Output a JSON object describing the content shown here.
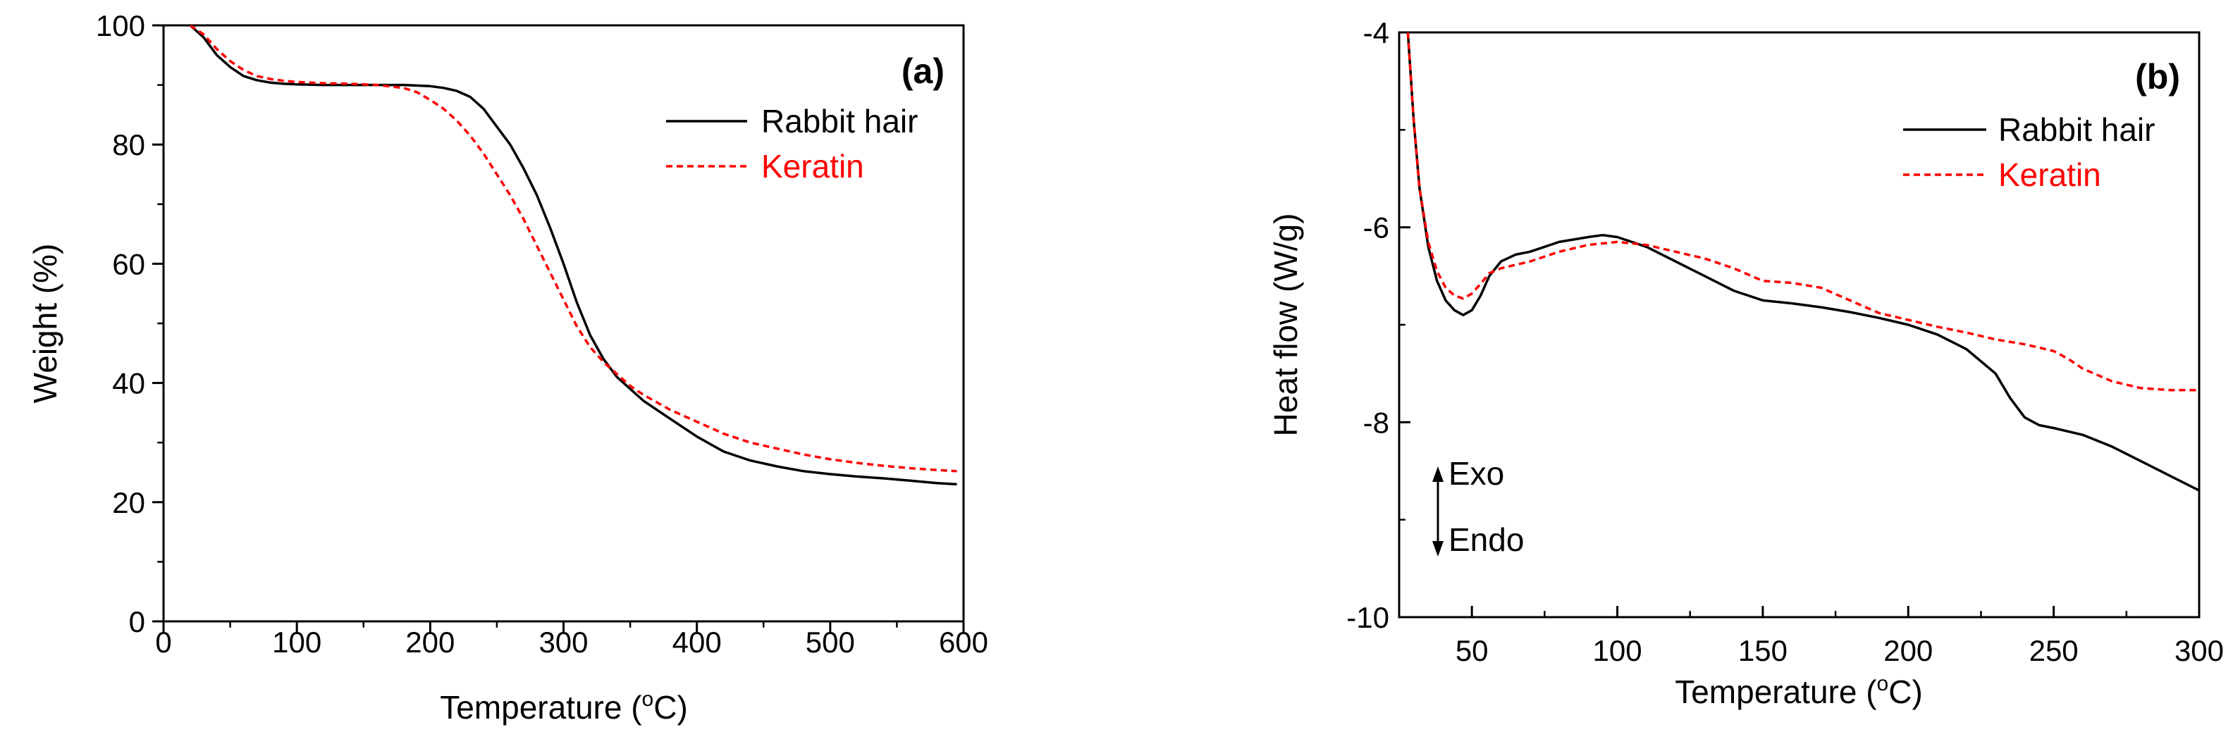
{
  "chart_data": [
    {
      "type": "line",
      "panel_label": "(a)",
      "xlabel_prefix": "Temperature (",
      "xlabel_sup": "o",
      "xlabel_suffix": "C)",
      "ylabel": "Weight (%)",
      "xlim": [
        0,
        600
      ],
      "ylim": [
        0,
        100
      ],
      "xticks": [
        0,
        100,
        200,
        300,
        400,
        500,
        600
      ],
      "yticks": [
        0,
        20,
        40,
        60,
        80,
        100
      ],
      "legend_position": "top-right",
      "series": [
        {
          "name": "Rabbit hair",
          "color": "#000000",
          "style": "solid",
          "x": [
            20,
            30,
            40,
            50,
            60,
            70,
            80,
            90,
            100,
            120,
            140,
            160,
            180,
            200,
            210,
            220,
            230,
            240,
            250,
            260,
            270,
            280,
            290,
            300,
            310,
            320,
            330,
            340,
            350,
            360,
            380,
            400,
            420,
            440,
            460,
            480,
            500,
            520,
            540,
            560,
            580,
            595
          ],
          "y": [
            100,
            98,
            95,
            93,
            91.5,
            90.8,
            90.4,
            90.2,
            90.1,
            90,
            90,
            90,
            90,
            89.8,
            89.5,
            89,
            88,
            86,
            83,
            80,
            76,
            71.5,
            66,
            60,
            53.5,
            48,
            44,
            41,
            39,
            37,
            34,
            31,
            28.5,
            27,
            26,
            25.2,
            24.7,
            24.3,
            24,
            23.6,
            23.2,
            23
          ]
        },
        {
          "name": "Keratin",
          "color": "#ff0000",
          "style": "dashed",
          "x": [
            20,
            30,
            40,
            50,
            60,
            70,
            80,
            90,
            100,
            120,
            140,
            160,
            180,
            190,
            200,
            210,
            220,
            230,
            240,
            250,
            260,
            270,
            280,
            290,
            300,
            310,
            320,
            330,
            340,
            350,
            360,
            380,
            400,
            420,
            440,
            460,
            480,
            500,
            520,
            540,
            560,
            580,
            595
          ],
          "y": [
            100,
            98.5,
            96,
            94,
            92.5,
            91.5,
            91,
            90.7,
            90.5,
            90.3,
            90.2,
            90,
            89.5,
            88.8,
            87.5,
            86,
            84,
            81.5,
            78.5,
            75,
            71.5,
            67.5,
            63,
            58.5,
            54,
            49.5,
            46,
            43.5,
            41.5,
            39.5,
            38,
            35.5,
            33.5,
            31.5,
            30,
            29,
            28,
            27.2,
            26.6,
            26.1,
            25.7,
            25.4,
            25.2
          ]
        }
      ]
    },
    {
      "type": "line",
      "panel_label": "(b)",
      "xlabel_prefix": "Temperature (",
      "xlabel_sup": "o",
      "xlabel_suffix": "C)",
      "ylabel": "Heat flow (W/g)",
      "xlim": [
        25,
        300
      ],
      "ylim": [
        -10,
        -4
      ],
      "xticks": [
        50,
        100,
        150,
        200,
        250,
        300
      ],
      "yticks": [
        -10,
        -8,
        -6,
        -4
      ],
      "legend_position": "top-right",
      "annotation_up": "Exo",
      "annotation_down": "Endo",
      "series": [
        {
          "name": "Rabbit hair",
          "color": "#000000",
          "style": "solid",
          "x": [
            28,
            30,
            32,
            35,
            38,
            41,
            44,
            47,
            50,
            53,
            56,
            60,
            65,
            70,
            80,
            90,
            95,
            100,
            110,
            120,
            130,
            140,
            150,
            160,
            170,
            180,
            190,
            200,
            210,
            220,
            230,
            235,
            240,
            245,
            250,
            260,
            270,
            280,
            290,
            300
          ],
          "y": [
            -4,
            -4.9,
            -5.6,
            -6.2,
            -6.55,
            -6.75,
            -6.85,
            -6.9,
            -6.85,
            -6.7,
            -6.5,
            -6.35,
            -6.28,
            -6.25,
            -6.15,
            -6.1,
            -6.08,
            -6.1,
            -6.2,
            -6.35,
            -6.5,
            -6.65,
            -6.75,
            -6.78,
            -6.82,
            -6.87,
            -6.93,
            -7.0,
            -7.1,
            -7.25,
            -7.5,
            -7.75,
            -7.95,
            -8.03,
            -8.06,
            -8.13,
            -8.25,
            -8.4,
            -8.55,
            -8.7
          ]
        },
        {
          "name": "Keratin",
          "color": "#ff0000",
          "style": "dashed",
          "x": [
            28,
            30,
            32,
            35,
            38,
            41,
            44,
            47,
            50,
            53,
            56,
            60,
            70,
            80,
            90,
            100,
            110,
            120,
            130,
            140,
            150,
            160,
            170,
            180,
            190,
            200,
            210,
            220,
            230,
            240,
            250,
            255,
            260,
            270,
            280,
            290,
            300
          ],
          "y": [
            -4,
            -4.9,
            -5.6,
            -6.15,
            -6.45,
            -6.62,
            -6.7,
            -6.73,
            -6.68,
            -6.58,
            -6.47,
            -6.42,
            -6.35,
            -6.25,
            -6.18,
            -6.15,
            -6.18,
            -6.25,
            -6.32,
            -6.42,
            -6.55,
            -6.57,
            -6.62,
            -6.75,
            -6.88,
            -6.95,
            -7.02,
            -7.08,
            -7.15,
            -7.2,
            -7.27,
            -7.35,
            -7.45,
            -7.58,
            -7.65,
            -7.67,
            -7.67
          ]
        }
      ]
    }
  ]
}
